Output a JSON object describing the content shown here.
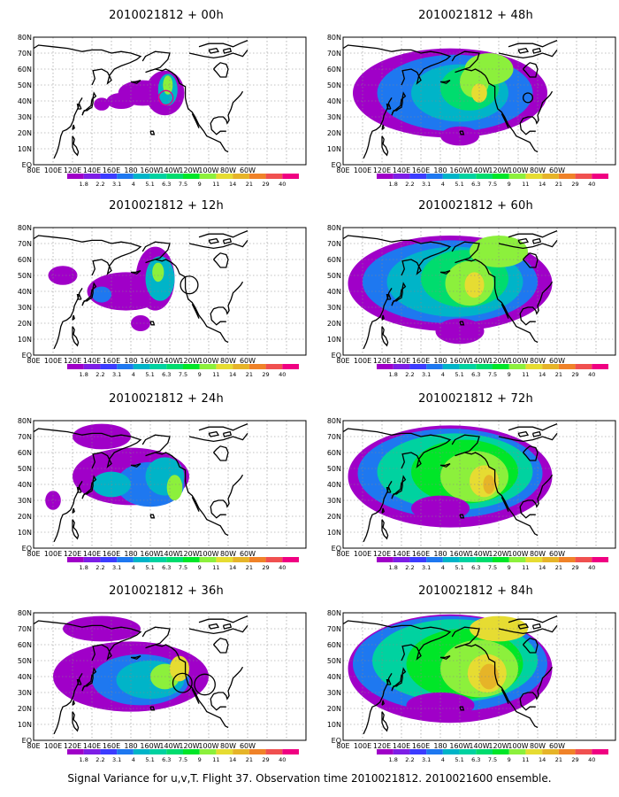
{
  "panels": [
    {
      "title": "2010021812 + 00h",
      "stage": 0,
      "circles": [
        {
          "color": "#e8008a"
        }
      ]
    },
    {
      "title": "2010021812 + 12h",
      "stage": 1,
      "circles": [
        {
          "color": "#000000"
        }
      ]
    },
    {
      "title": "2010021812 + 24h",
      "stage": 2,
      "circles": []
    },
    {
      "title": "2010021812 + 36h",
      "stage": 3,
      "circles": [
        {
          "color": "#000000"
        },
        {
          "color": "#000000"
        }
      ]
    },
    {
      "title": "2010021812 + 48h",
      "stage": 4,
      "circles": [
        {
          "color": "#000000"
        }
      ]
    },
    {
      "title": "2010021812 + 60h",
      "stage": 5,
      "circles": []
    },
    {
      "title": "2010021812 + 72h",
      "stage": 6,
      "circles": []
    },
    {
      "title": "2010021812 + 84h",
      "stage": 7,
      "circles": []
    }
  ],
  "lon_labels": [
    "80E",
    "100E",
    "120E",
    "140E",
    "160E",
    "180",
    "160W",
    "140W",
    "120W",
    "100W",
    "80W",
    "60W"
  ],
  "lat_labels": [
    "EQ",
    "10N",
    "20N",
    "30N",
    "40N",
    "50N",
    "60N",
    "70N",
    "80N"
  ],
  "colorbar": {
    "labels": [
      "1.8",
      "2.2",
      "3.1",
      "4",
      "5.1",
      "6.3",
      "7.5",
      "9",
      "11",
      "14",
      "21",
      "29",
      "40"
    ],
    "colors": [
      "#a000c8",
      "#7d1ee6",
      "#3c3cff",
      "#1e78f0",
      "#00b4c8",
      "#00d2a0",
      "#00dc6e",
      "#00e628",
      "#8cf03c",
      "#e6dc32",
      "#e6b428",
      "#f08228",
      "#f05050",
      "#f00082"
    ]
  },
  "caption": "Signal Variance for u,v,T. Flight 37. Observation time 2010021812. 2010021600 ensemble."
}
